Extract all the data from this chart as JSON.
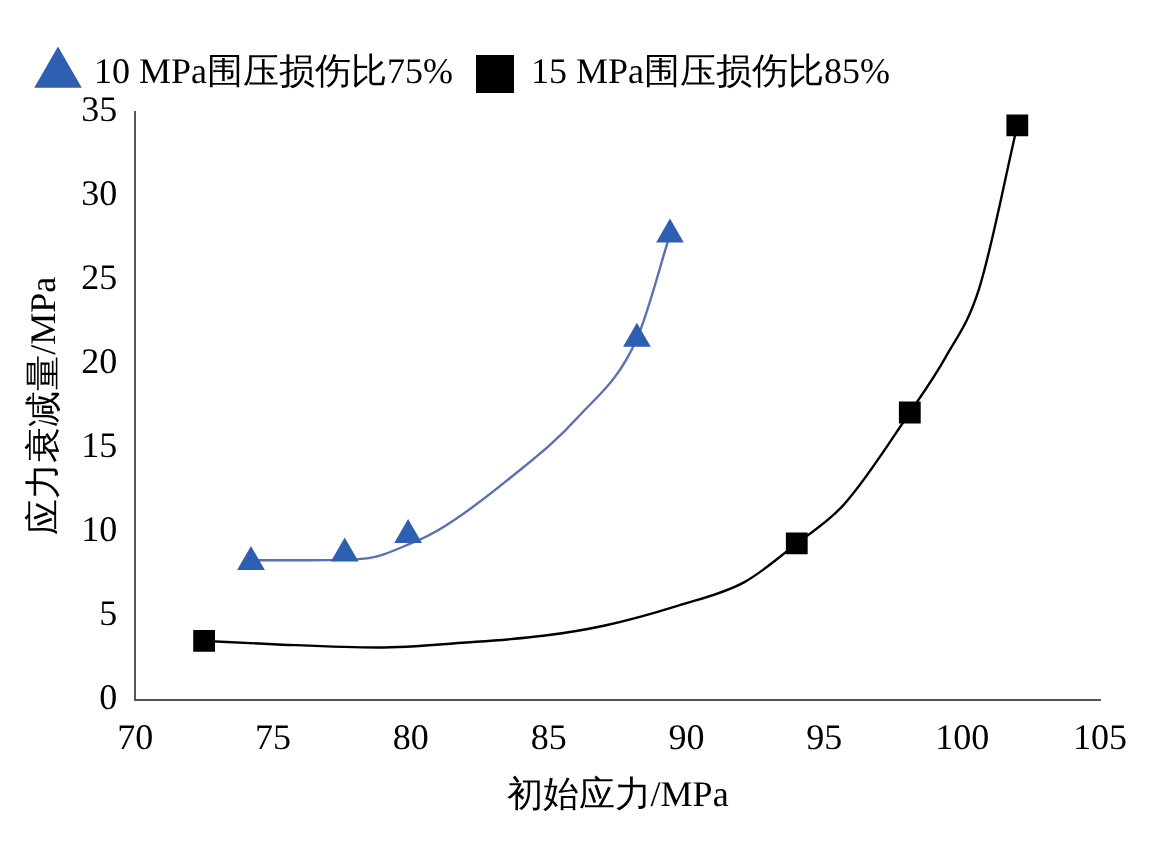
{
  "chart_data": {
    "type": "scatter",
    "xlabel": "初始应力/MPa",
    "ylabel": "应力衰减量/MPa",
    "xlim": [
      70,
      105
    ],
    "xticks": [
      70,
      75,
      80,
      85,
      90,
      95,
      100,
      105
    ],
    "ylim": [
      0,
      35
    ],
    "yticks": [
      0,
      5,
      10,
      15,
      20,
      25,
      30,
      35
    ],
    "grid": false,
    "legend": "top left",
    "series": [
      {
        "name": "10 MPa围压损伤比75%",
        "color": "#2e5fb0",
        "marker": "triangle",
        "x": [
          74.2,
          77.6,
          79.9,
          88.2,
          89.4
        ],
        "values": [
          8.2,
          8.7,
          9.8,
          21.5,
          27.7
        ]
      },
      {
        "name": "15 MPa围压损伤比85%",
        "color": "#000000",
        "marker": "square",
        "x": [
          72.5,
          94.0,
          98.1,
          102.0
        ],
        "values": [
          3.5,
          9.3,
          17.1,
          34.2
        ]
      },
      {
        "type": "line",
        "color": "#5a6fb8",
        "marker": "none",
        "x": [
          74.2,
          76,
          78.3,
          80,
          81.2,
          83.6,
          86.05,
          88.2,
          89.4
        ],
        "values": [
          8.3,
          8.3,
          8.4,
          9.3,
          10.3,
          13.2,
          16.8,
          21.5,
          27.7
        ]
      },
      {
        "type": "line",
        "color": "#000000",
        "marker": "none",
        "x": [
          72.5,
          75,
          78.8,
          82,
          84.8,
          87,
          89.7,
          92.1,
          94,
          95.7,
          98.1,
          99.4,
          100.6,
          102
        ],
        "values": [
          3.5,
          3.3,
          3.1,
          3.4,
          3.8,
          4.4,
          5.6,
          7.0,
          9.3,
          11.6,
          17.1,
          20.4,
          24.4,
          34.2
        ]
      }
    ]
  }
}
